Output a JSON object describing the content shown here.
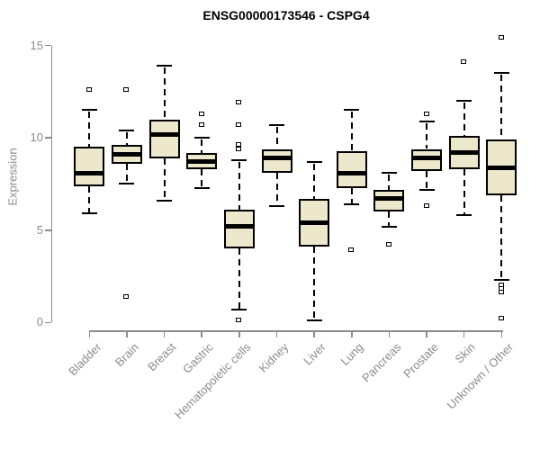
{
  "chart_data": {
    "type": "boxplot",
    "title": "ENSG00000173546 - CSPG4",
    "xlabel": "",
    "ylabel": "Expression",
    "ylim": [
      0,
      15.5
    ],
    "yticks": [
      0,
      5,
      10,
      15
    ],
    "grid": false,
    "legend": "none",
    "categories": [
      "Bladder",
      "Brain",
      "Breast",
      "Gastric",
      "Hematopoietic cells",
      "Kidney",
      "Liver",
      "Lung",
      "Pancreas",
      "Prostate",
      "Skin",
      "Unknown / Other"
    ],
    "series": [
      {
        "name": "Bladder",
        "whislo": 5.9,
        "q1": 7.4,
        "med": 8.1,
        "q3": 9.5,
        "whishi": 11.5,
        "outliers": [
          12.6
        ]
      },
      {
        "name": "Brain",
        "whislo": 7.5,
        "q1": 8.6,
        "med": 9.1,
        "q3": 9.6,
        "whishi": 10.4,
        "outliers": [
          12.6,
          1.4
        ]
      },
      {
        "name": "Breast",
        "whislo": 6.6,
        "q1": 8.9,
        "med": 10.2,
        "q3": 11.0,
        "whishi": 13.9,
        "outliers": []
      },
      {
        "name": "Gastric",
        "whislo": 7.3,
        "q1": 8.3,
        "med": 8.7,
        "q3": 9.2,
        "whishi": 10.0,
        "outliers": [
          11.3,
          10.7
        ]
      },
      {
        "name": "Hematopoietic cells",
        "whislo": 0.7,
        "q1": 4.0,
        "med": 5.2,
        "q3": 6.1,
        "whishi": 8.8,
        "outliers": [
          11.9,
          10.7,
          9.6,
          9.4,
          0.1
        ]
      },
      {
        "name": "Kidney",
        "whislo": 6.3,
        "q1": 8.1,
        "med": 8.9,
        "q3": 9.4,
        "whishi": 10.7,
        "outliers": []
      },
      {
        "name": "Liver",
        "whislo": 0.1,
        "q1": 4.1,
        "med": 5.4,
        "q3": 6.7,
        "whishi": 8.7,
        "outliers": []
      },
      {
        "name": "Lung",
        "whislo": 6.4,
        "q1": 7.3,
        "med": 8.1,
        "q3": 9.3,
        "whishi": 11.5,
        "outliers": [
          3.9
        ]
      },
      {
        "name": "Pancreas",
        "whislo": 5.2,
        "q1": 6.0,
        "med": 6.7,
        "q3": 7.2,
        "whishi": 8.1,
        "outliers": [
          4.2
        ]
      },
      {
        "name": "Prostate",
        "whislo": 7.2,
        "q1": 8.2,
        "med": 8.9,
        "q3": 9.4,
        "whishi": 10.9,
        "outliers": [
          11.3,
          6.3
        ]
      },
      {
        "name": "Skin",
        "whislo": 5.8,
        "q1": 8.3,
        "med": 9.2,
        "q3": 10.1,
        "whishi": 12.0,
        "outliers": [
          14.1
        ]
      },
      {
        "name": "Unknown / Other",
        "whislo": 2.3,
        "q1": 6.9,
        "med": 8.4,
        "q3": 9.9,
        "whishi": 13.5,
        "outliers": [
          15.4,
          2.0,
          1.8,
          1.6,
          0.2
        ]
      }
    ],
    "colors": {
      "box_fill": "#EDE7CC",
      "box_border": "#000000",
      "median": "#000000",
      "axis": "#8B8B8B",
      "tick_label": "#8B8B8B",
      "title": "#000000",
      "background": "#FFFFFF"
    }
  }
}
